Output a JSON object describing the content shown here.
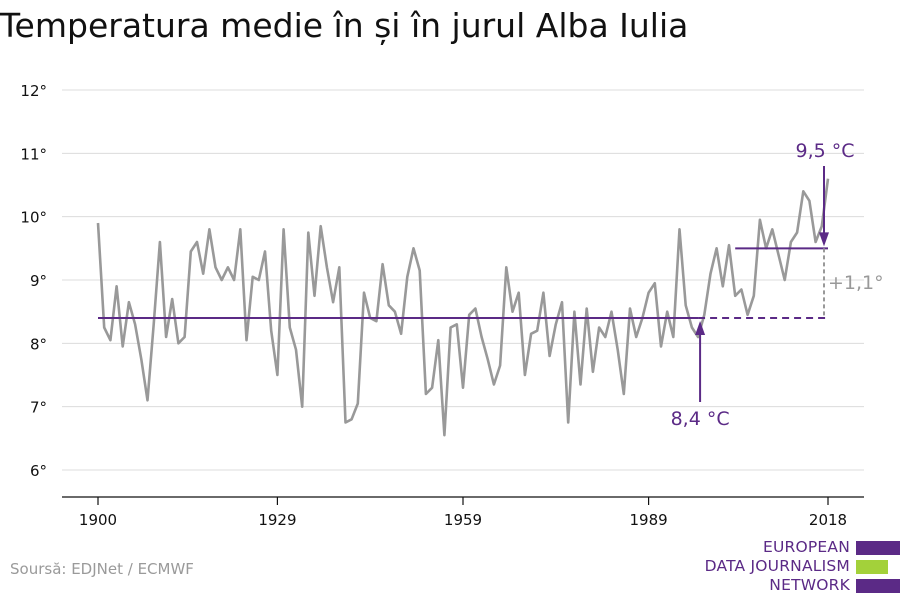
{
  "chart_data": {
    "type": "line",
    "title": "Temperatura medie în și în jurul Alba Iulia",
    "xlabel": "",
    "ylabel": "",
    "xlim": [
      1900,
      2018
    ],
    "ylim": [
      6,
      12
    ],
    "x_ticks": [
      1900,
      1929,
      1959,
      1989,
      2018
    ],
    "x_tick_labels": [
      "1900",
      "1929",
      "1959",
      "1989",
      "2018"
    ],
    "y_ticks": [
      6,
      7,
      8,
      9,
      10,
      11,
      12
    ],
    "y_tick_labels": [
      "6°",
      "7°",
      "8°",
      "9°",
      "10°",
      "11°",
      "12°"
    ],
    "grid": true,
    "series": [
      {
        "color": "#999999",
        "x": [
          1900,
          1901,
          1902,
          1903,
          1904,
          1905,
          1906,
          1907,
          1908,
          1909,
          1910,
          1911,
          1912,
          1913,
          1914,
          1915,
          1916,
          1917,
          1918,
          1919,
          1920,
          1921,
          1922,
          1923,
          1924,
          1925,
          1926,
          1927,
          1928,
          1929,
          1930,
          1931,
          1932,
          1933,
          1934,
          1935,
          1936,
          1937,
          1938,
          1939,
          1940,
          1941,
          1942,
          1943,
          1944,
          1945,
          1946,
          1947,
          1948,
          1949,
          1950,
          1951,
          1952,
          1953,
          1954,
          1955,
          1956,
          1957,
          1958,
          1959,
          1960,
          1961,
          1962,
          1963,
          1964,
          1965,
          1966,
          1967,
          1968,
          1969,
          1970,
          1971,
          1972,
          1973,
          1974,
          1975,
          1976,
          1977,
          1978,
          1979,
          1980,
          1981,
          1982,
          1983,
          1984,
          1985,
          1986,
          1987,
          1988,
          1989,
          1990,
          1991,
          1992,
          1993,
          1994,
          1995,
          1996,
          1997,
          1998,
          1999,
          2000,
          2001,
          2002,
          2003,
          2004,
          2005,
          2006,
          2007,
          2008,
          2009,
          2010,
          2011,
          2012,
          2013,
          2014,
          2015,
          2016,
          2017,
          2018
        ],
        "values": [
          9.9,
          8.25,
          8.05,
          8.9,
          7.95,
          8.65,
          8.3,
          7.75,
          7.1,
          8.3,
          9.6,
          8.1,
          8.7,
          8.0,
          8.1,
          9.45,
          9.6,
          9.1,
          9.8,
          9.2,
          9.0,
          9.2,
          9.0,
          9.8,
          8.05,
          9.05,
          9.0,
          9.45,
          8.2,
          7.5,
          9.8,
          8.25,
          7.9,
          7.0,
          9.75,
          8.75,
          9.85,
          9.2,
          8.65,
          9.2,
          6.75,
          6.8,
          7.05,
          8.8,
          8.4,
          8.35,
          9.25,
          8.6,
          8.5,
          8.15,
          9.05,
          9.5,
          9.15,
          7.2,
          7.3,
          8.05,
          6.55,
          8.25,
          8.3,
          7.3,
          8.45,
          8.55,
          8.1,
          7.75,
          7.35,
          7.65,
          9.2,
          8.5,
          8.8,
          7.5,
          8.15,
          8.2,
          8.8,
          7.8,
          8.3,
          8.65,
          6.75,
          8.5,
          7.35,
          8.55,
          7.55,
          8.25,
          8.1,
          8.5,
          7.9,
          7.2,
          8.55,
          8.1,
          8.4,
          8.8,
          8.95,
          7.95,
          8.5,
          8.1,
          9.8,
          8.6,
          8.25,
          8.1,
          8.45,
          9.1,
          9.5,
          8.9,
          9.55,
          8.75,
          8.85,
          8.45,
          8.75,
          9.95,
          9.5,
          9.8,
          9.4,
          9.0,
          9.6,
          9.75,
          10.4,
          10.25,
          9.6,
          9.85,
          10.6
        ]
      }
    ],
    "reference_lines": [
      {
        "label": "8,4 °C",
        "value": 8.4,
        "from": 1900,
        "to": 1997,
        "dashed_to": 2018,
        "color": "#5b2a86"
      },
      {
        "label": "9,5 °C",
        "value": 9.5,
        "from": 2003,
        "to": 2018,
        "color": "#5b2a86"
      }
    ],
    "difference_label": "+1,1°",
    "difference_color": "#999999"
  },
  "source": "Soursă: EDJNet / ECMWF",
  "logo": {
    "lines": [
      "EUROPEAN",
      "DATA JOURNALISM",
      "NETWORK"
    ],
    "text_color": "#5b2a86",
    "bar_colors": [
      "#5b2a86",
      "#a3d13a",
      "#5b2a86"
    ]
  }
}
